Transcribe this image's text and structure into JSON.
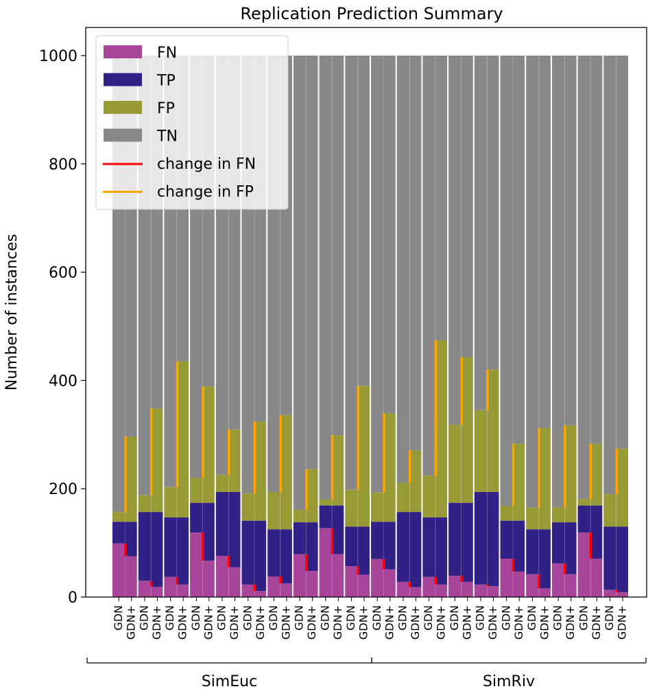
{
  "chart_data": {
    "type": "bar",
    "stacked": true,
    "title": "Replication Prediction Summary",
    "xlabel": "",
    "ylabel": "Number of instances",
    "ylim": [
      0,
      1050
    ],
    "yticks": [
      0,
      200,
      400,
      600,
      800,
      1000
    ],
    "total_per_bar": 1000,
    "grid": false,
    "legend_position": "top-left",
    "legend": [
      {
        "label": "FN",
        "kind": "patch",
        "color": "#a8459a"
      },
      {
        "label": "TP",
        "kind": "patch",
        "color": "#312186"
      },
      {
        "label": "FP",
        "kind": "patch",
        "color": "#989a35"
      },
      {
        "label": "TN",
        "kind": "patch",
        "color": "#888888"
      },
      {
        "label": "change in FN",
        "kind": "line",
        "color": "#ff0000"
      },
      {
        "label": "change in FP",
        "kind": "line",
        "color": "#ffa500"
      }
    ],
    "colors": {
      "FN": "#a8459a",
      "TP": "#312186",
      "FP": "#989a35",
      "TN": "#888888",
      "change_fn": "#ff0000",
      "change_fp": "#ffa500"
    },
    "bar_labels": [
      "GDN",
      "GDN+"
    ],
    "groups": [
      {
        "name": "SimEuc",
        "pairs": [
          {
            "GDN": {
              "FN": 99,
              "TP": 40,
              "FP": 18
            },
            "GDN+": {
              "FN": 75,
              "TP": 64,
              "FP": 157
            }
          },
          {
            "GDN": {
              "FN": 30,
              "TP": 127,
              "FP": 31
            },
            "GDN+": {
              "FN": 19,
              "TP": 138,
              "FP": 191
            }
          },
          {
            "GDN": {
              "FN": 37,
              "TP": 110,
              "FP": 56
            },
            "GDN+": {
              "FN": 23,
              "TP": 124,
              "FP": 288
            }
          },
          {
            "GDN": {
              "FN": 119,
              "TP": 55,
              "FP": 46
            },
            "GDN+": {
              "FN": 67,
              "TP": 107,
              "FP": 215
            }
          },
          {
            "GDN": {
              "FN": 76,
              "TP": 118,
              "FP": 32
            },
            "GDN+": {
              "FN": 55,
              "TP": 139,
              "FP": 115
            }
          },
          {
            "GDN": {
              "FN": 23,
              "TP": 118,
              "FP": 50
            },
            "GDN+": {
              "FN": 11,
              "TP": 130,
              "FP": 183
            }
          },
          {
            "GDN": {
              "FN": 38,
              "TP": 87,
              "FP": 69
            },
            "GDN+": {
              "FN": 25,
              "TP": 100,
              "FP": 211
            }
          },
          {
            "GDN": {
              "FN": 79,
              "TP": 59,
              "FP": 23
            },
            "GDN+": {
              "FN": 48,
              "TP": 90,
              "FP": 98
            }
          },
          {
            "GDN": {
              "FN": 127,
              "TP": 42,
              "FP": 11
            },
            "GDN+": {
              "FN": 79,
              "TP": 90,
              "FP": 130
            }
          },
          {
            "GDN": {
              "FN": 57,
              "TP": 73,
              "FP": 68
            },
            "GDN+": {
              "FN": 41,
              "TP": 89,
              "FP": 260
            }
          }
        ]
      },
      {
        "name": "SimRiv",
        "pairs": [
          {
            "GDN": {
              "FN": 70,
              "TP": 69,
              "FP": 54
            },
            "GDN+": {
              "FN": 51,
              "TP": 88,
              "FP": 200
            }
          },
          {
            "GDN": {
              "FN": 28,
              "TP": 129,
              "FP": 54
            },
            "GDN+": {
              "FN": 18,
              "TP": 139,
              "FP": 114
            }
          },
          {
            "GDN": {
              "FN": 37,
              "TP": 110,
              "FP": 77
            },
            "GDN+": {
              "FN": 23,
              "TP": 124,
              "FP": 327
            }
          },
          {
            "GDN": {
              "FN": 39,
              "TP": 135,
              "FP": 144
            },
            "GDN+": {
              "FN": 28,
              "TP": 146,
              "FP": 269
            }
          },
          {
            "GDN": {
              "FN": 23,
              "TP": 171,
              "FP": 151
            },
            "GDN+": {
              "FN": 20,
              "TP": 174,
              "FP": 226
            }
          },
          {
            "GDN": {
              "FN": 71,
              "TP": 70,
              "FP": 27
            },
            "GDN+": {
              "FN": 47,
              "TP": 94,
              "FP": 142
            }
          },
          {
            "GDN": {
              "FN": 42,
              "TP": 83,
              "FP": 40
            },
            "GDN+": {
              "FN": 16,
              "TP": 109,
              "FP": 187
            }
          },
          {
            "GDN": {
              "FN": 62,
              "TP": 76,
              "FP": 28
            },
            "GDN+": {
              "FN": 42,
              "TP": 96,
              "FP": 179
            }
          },
          {
            "GDN": {
              "FN": 119,
              "TP": 50,
              "FP": 12
            },
            "GDN+": {
              "FN": 71,
              "TP": 98,
              "FP": 114
            }
          },
          {
            "GDN": {
              "FN": 13,
              "TP": 117,
              "FP": 60
            },
            "GDN+": {
              "FN": 9,
              "TP": 121,
              "FP": 144
            }
          }
        ]
      }
    ]
  }
}
